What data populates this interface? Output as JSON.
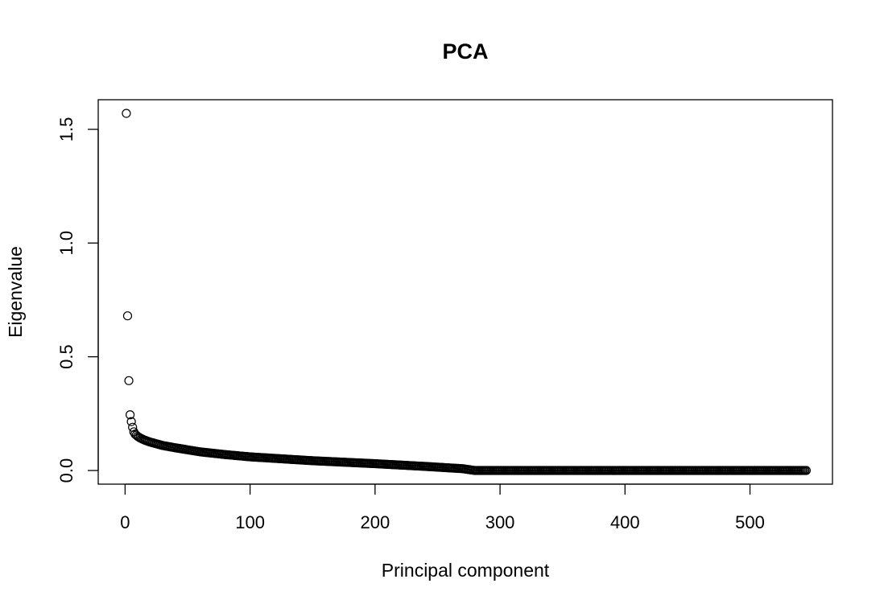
{
  "chart_data": {
    "type": "scatter",
    "title": "PCA",
    "xlabel": "Principal component",
    "ylabel": "Eigenvalue",
    "xlim": [
      -21.5,
      566
    ],
    "ylim": [
      -0.06,
      1.63
    ],
    "xticks": [
      0,
      100,
      200,
      300,
      400,
      500
    ],
    "xtick_labels": [
      "0",
      "100",
      "200",
      "300",
      "400",
      "500"
    ],
    "yticks": [
      0.0,
      0.5,
      1.0,
      1.5
    ],
    "ytick_labels": [
      "0.0",
      "0.5",
      "1.0",
      "1.5"
    ],
    "grid": false,
    "legend": "none",
    "n_points": 545,
    "points_head": [
      [
        1,
        1.57
      ],
      [
        2,
        0.68
      ],
      [
        3,
        0.395
      ],
      [
        4,
        0.245
      ],
      [
        5,
        0.215
      ],
      [
        6,
        0.19
      ],
      [
        7,
        0.17
      ],
      [
        8,
        0.16
      ],
      [
        9,
        0.155
      ],
      [
        10,
        0.15
      ],
      [
        12,
        0.143
      ],
      [
        15,
        0.135
      ],
      [
        20,
        0.125
      ],
      [
        30,
        0.11
      ],
      [
        40,
        0.1
      ]
    ],
    "curve_knots": [
      [
        40,
        0.1
      ],
      [
        60,
        0.082
      ],
      [
        80,
        0.07
      ],
      [
        100,
        0.06
      ],
      [
        150,
        0.043
      ],
      [
        200,
        0.03
      ],
      [
        240,
        0.018
      ],
      [
        270,
        0.008
      ],
      [
        280,
        0.0
      ],
      [
        545,
        0.0
      ]
    ],
    "series_color": "#000000"
  }
}
